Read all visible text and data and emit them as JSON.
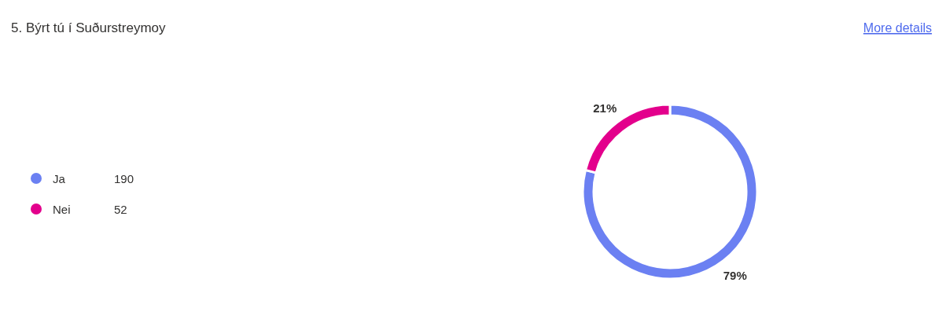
{
  "chart_data": {
    "type": "donut",
    "title": "5. Býrt tú í Suðurstreymoy",
    "categories": [
      "Ja",
      "Nei"
    ],
    "values": [
      79,
      21
    ],
    "colors": [
      "#6b80f2",
      "#e3008c"
    ],
    "value_labels": [
      "79%",
      "21%"
    ],
    "legend": "left",
    "annotations": [
      "More details",
      "190",
      "52"
    ]
  }
}
